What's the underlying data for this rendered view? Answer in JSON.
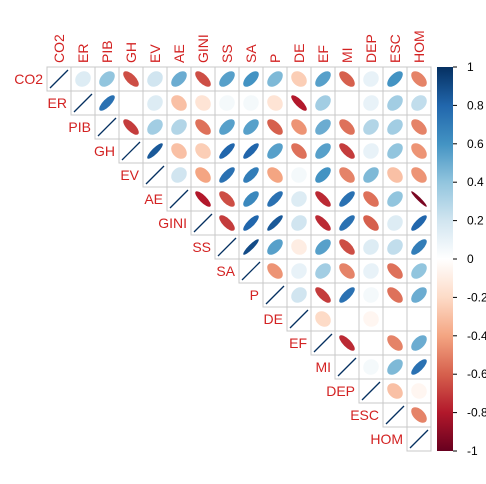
{
  "chart_data": {
    "type": "heatmap",
    "subtype": "correlation-ellipse-upper",
    "variables": [
      "CO2",
      "ER",
      "PIB",
      "GH",
      "EV",
      "AE",
      "GINI",
      "SS",
      "SA",
      "P",
      "DE",
      "EF",
      "MI",
      "DEP",
      "ESC",
      "HOM"
    ],
    "matrix": [
      [
        1.0,
        0.15,
        0.4,
        -0.65,
        0.2,
        0.5,
        -0.65,
        0.55,
        0.6,
        0.45,
        -0.25,
        0.55,
        -0.6,
        0.1,
        0.6,
        -0.5
      ],
      [
        0.15,
        1.0,
        0.75,
        0.0,
        0.15,
        -0.3,
        -0.15,
        0.05,
        0.05,
        -0.15,
        -0.8,
        0.35,
        0.0,
        0.1,
        0.35,
        0.25
      ],
      [
        0.4,
        0.75,
        1.0,
        -0.7,
        0.35,
        0.3,
        -0.55,
        0.55,
        0.55,
        -0.6,
        -0.45,
        0.5,
        -0.55,
        0.3,
        0.35,
        -0.5
      ],
      [
        -0.65,
        0.0,
        -0.7,
        1.0,
        0.85,
        -0.3,
        -0.25,
        0.8,
        0.8,
        0.55,
        -0.55,
        0.55,
        -0.7,
        0.1,
        0.4,
        -0.45
      ],
      [
        0.2,
        0.15,
        0.35,
        0.85,
        1.0,
        0.2,
        -0.4,
        0.75,
        0.7,
        -0.4,
        0.05,
        0.6,
        -0.5,
        0.45,
        -0.3,
        -0.45
      ],
      [
        0.5,
        -0.3,
        0.3,
        -0.3,
        0.2,
        1.0,
        -0.8,
        -0.65,
        0.65,
        0.75,
        0.15,
        -0.75,
        0.75,
        -0.55,
        0.4,
        -0.95
      ],
      [
        -0.65,
        -0.15,
        -0.55,
        -0.25,
        -0.4,
        -0.8,
        1.0,
        -0.7,
        0.8,
        0.85,
        0.2,
        -0.75,
        0.75,
        -0.6,
        0.15,
        0.8
      ],
      [
        0.55,
        0.05,
        0.55,
        0.8,
        0.75,
        -0.65,
        -0.7,
        1.0,
        0.9,
        0.55,
        -0.1,
        0.55,
        -0.65,
        0.15,
        0.25,
        0.7
      ],
      [
        0.6,
        0.05,
        0.55,
        0.8,
        0.7,
        0.65,
        0.8,
        0.9,
        1.0,
        -0.45,
        0.1,
        0.35,
        -0.5,
        0.1,
        -0.55,
        0.4
      ],
      [
        0.45,
        -0.15,
        -0.6,
        0.55,
        -0.4,
        0.75,
        0.85,
        0.55,
        -0.45,
        1.0,
        0.2,
        -0.7,
        0.75,
        0.05,
        -0.55,
        0.5
      ],
      [
        -0.25,
        -0.8,
        -0.45,
        -0.55,
        0.05,
        0.15,
        0.2,
        -0.1,
        0.1,
        0.2,
        1.0,
        -0.2,
        0.0,
        -0.05,
        0.0,
        0.0
      ],
      [
        0.55,
        0.35,
        0.5,
        0.55,
        0.6,
        -0.75,
        -0.75,
        0.55,
        0.35,
        -0.7,
        -0.2,
        1.0,
        -0.75,
        0.0,
        -0.5,
        0.5
      ],
      [
        -0.6,
        0.0,
        -0.55,
        -0.7,
        -0.5,
        0.75,
        0.75,
        -0.65,
        -0.5,
        0.75,
        0.0,
        -0.75,
        1.0,
        0.05,
        0.45,
        0.75
      ],
      [
        0.1,
        0.1,
        0.3,
        0.1,
        0.45,
        -0.55,
        -0.6,
        0.15,
        0.1,
        0.05,
        -0.05,
        0.0,
        0.05,
        1.0,
        -0.3,
        -0.05
      ],
      [
        0.6,
        0.35,
        0.35,
        0.4,
        -0.3,
        0.4,
        0.15,
        0.25,
        -0.55,
        -0.55,
        0.0,
        -0.5,
        0.45,
        -0.3,
        1.0,
        -0.5
      ],
      [
        -0.5,
        0.25,
        -0.5,
        -0.45,
        -0.45,
        -0.95,
        0.8,
        0.7,
        0.4,
        0.5,
        0.0,
        0.5,
        0.75,
        -0.05,
        -0.5,
        1.0
      ]
    ],
    "color_scale": {
      "min": -1,
      "max": 1,
      "ticks": [
        "1",
        "0.8",
        "0.6",
        "0.4",
        "0.2",
        "0",
        "-0.2",
        "-0.4",
        "-0.6",
        "-0.8",
        "-1"
      ],
      "stops": [
        "#67001F",
        "#B2182B",
        "#D6604D",
        "#F4A582",
        "#FDDBC7",
        "#FFFFFF",
        "#D1E5F0",
        "#92C5DE",
        "#4393C3",
        "#2166AC",
        "#053061"
      ]
    },
    "label_color": "#D32222",
    "grid": true,
    "legend": "right"
  }
}
